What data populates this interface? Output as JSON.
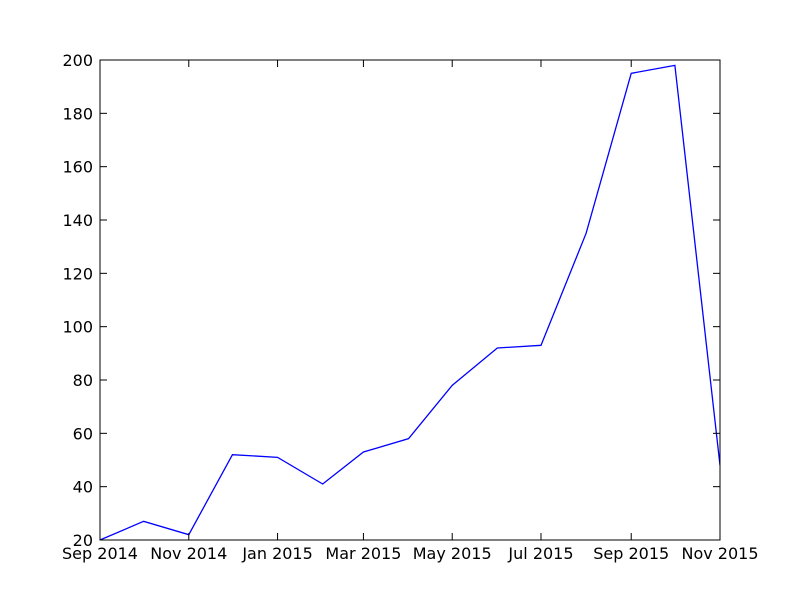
{
  "chart_data": {
    "type": "line",
    "title": "",
    "xlabel": "",
    "ylabel": "",
    "x_tick_labels": [
      "Sep 2014",
      "Nov 2014",
      "Jan 2015",
      "Mar 2015",
      "May 2015",
      "Jul 2015",
      "Sep 2015",
      "Nov 2015"
    ],
    "x_tick_dates": [
      "2014-09-01",
      "2014-11-01",
      "2015-01-01",
      "2015-03-01",
      "2015-05-01",
      "2015-07-01",
      "2015-09-01",
      "2015-11-01"
    ],
    "xlim": [
      "2014-09-01",
      "2015-11-01"
    ],
    "ylim": [
      20,
      200
    ],
    "y_ticks": [
      20,
      40,
      60,
      80,
      100,
      120,
      140,
      160,
      180,
      200
    ],
    "grid": false,
    "legend": "none",
    "series": [
      {
        "color": "#0000ff",
        "x": [
          "2014-09-01",
          "2014-10-01",
          "2014-11-01",
          "2014-12-01",
          "2015-01-01",
          "2015-02-01",
          "2015-03-01",
          "2015-04-01",
          "2015-05-01",
          "2015-06-01",
          "2015-07-01",
          "2015-08-01",
          "2015-09-01",
          "2015-10-01",
          "2015-11-01"
        ],
        "y": [
          20,
          27,
          22,
          52,
          51,
          41,
          53,
          58,
          78,
          92,
          93,
          135,
          195,
          198,
          48
        ]
      }
    ]
  }
}
